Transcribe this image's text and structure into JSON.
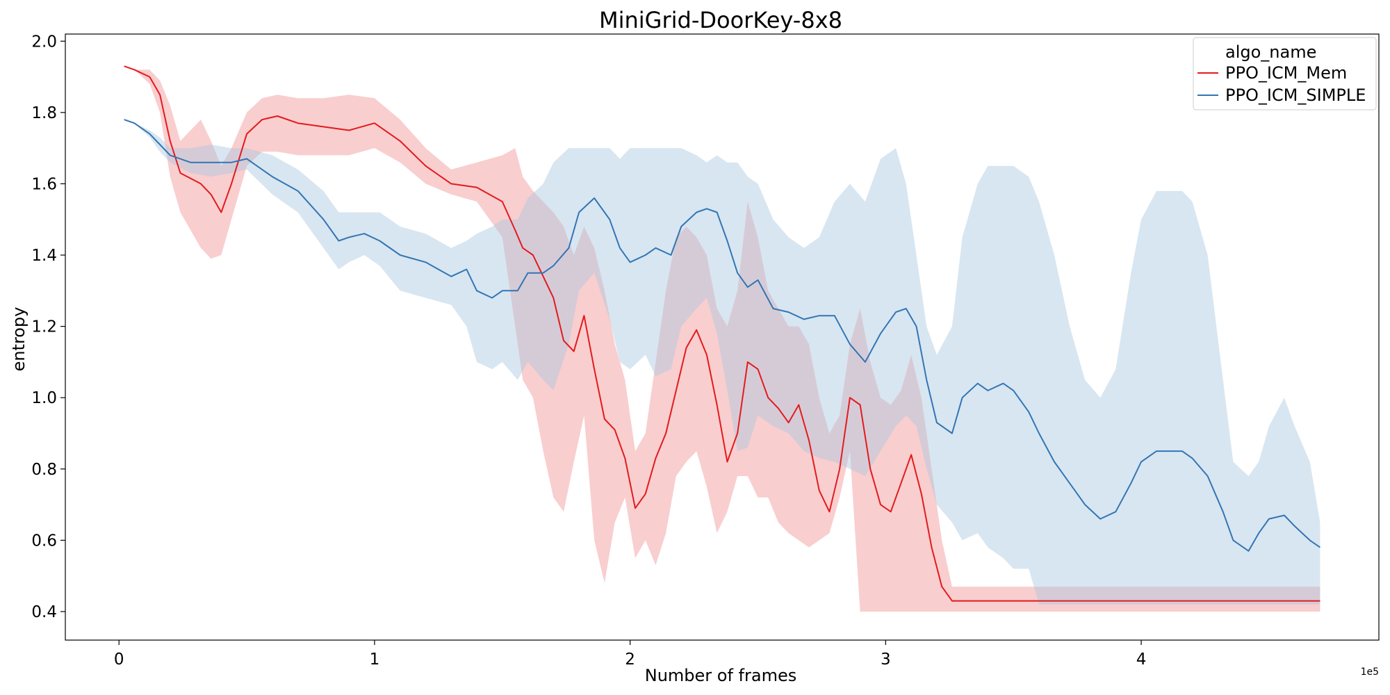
{
  "chart_data": {
    "type": "line",
    "title": "MiniGrid-DoorKey-8x8",
    "xlabel": "Number of frames",
    "ylabel": "entropy",
    "x_scale_label": "1e5",
    "xlim": [
      -0.21,
      4.93
    ],
    "ylim": [
      0.32,
      2.02
    ],
    "x_ticks": [
      0,
      1,
      2,
      3,
      4
    ],
    "x_tick_labels": [
      "0",
      "1",
      "2",
      "3",
      "4"
    ],
    "y_ticks": [
      0.4,
      0.6,
      0.8,
      1.0,
      1.2,
      1.4,
      1.6,
      1.8,
      2.0
    ],
    "y_tick_labels": [
      "0.4",
      "0.6",
      "0.8",
      "1.0",
      "1.2",
      "1.4",
      "1.6",
      "1.8",
      "2.0"
    ],
    "grid": false,
    "legend": {
      "title": "algo_name",
      "position": "top-right"
    },
    "series": [
      {
        "name": "PPO_ICM_Mem",
        "color": "#e31a1c",
        "band_color": "#f4a6a7",
        "x": [
          0.02,
          0.06,
          0.12,
          0.16,
          0.2,
          0.24,
          0.32,
          0.36,
          0.4,
          0.44,
          0.5,
          0.56,
          0.62,
          0.7,
          0.8,
          0.9,
          1.0,
          1.1,
          1.2,
          1.3,
          1.4,
          1.5,
          1.55,
          1.58,
          1.62,
          1.66,
          1.7,
          1.74,
          1.78,
          1.82,
          1.86,
          1.9,
          1.94,
          1.98,
          2.02,
          2.06,
          2.1,
          2.14,
          2.18,
          2.22,
          2.26,
          2.3,
          2.34,
          2.38,
          2.42,
          2.46,
          2.5,
          2.54,
          2.58,
          2.62,
          2.66,
          2.7,
          2.74,
          2.78,
          2.82,
          2.86,
          2.9,
          2.94,
          2.98,
          3.02,
          3.06,
          3.1,
          3.14,
          3.18,
          3.22,
          3.26,
          3.3,
          3.5,
          4.0,
          4.7
        ],
        "y": [
          1.93,
          1.92,
          1.9,
          1.85,
          1.72,
          1.63,
          1.6,
          1.57,
          1.52,
          1.6,
          1.74,
          1.78,
          1.79,
          1.77,
          1.76,
          1.75,
          1.77,
          1.72,
          1.65,
          1.6,
          1.59,
          1.55,
          1.47,
          1.42,
          1.4,
          1.34,
          1.28,
          1.16,
          1.13,
          1.23,
          1.08,
          0.94,
          0.91,
          0.83,
          0.69,
          0.73,
          0.83,
          0.9,
          1.02,
          1.14,
          1.19,
          1.12,
          0.98,
          0.82,
          0.9,
          1.1,
          1.08,
          1.0,
          0.97,
          0.93,
          0.98,
          0.88,
          0.74,
          0.68,
          0.8,
          1.0,
          0.98,
          0.8,
          0.7,
          0.68,
          0.76,
          0.84,
          0.73,
          0.58,
          0.47,
          0.43,
          0.43,
          0.43,
          0.43,
          0.43
        ],
        "lower": [
          1.93,
          1.92,
          1.88,
          1.8,
          1.62,
          1.52,
          1.42,
          1.39,
          1.4,
          1.5,
          1.65,
          1.69,
          1.69,
          1.68,
          1.68,
          1.68,
          1.7,
          1.66,
          1.6,
          1.57,
          1.55,
          1.45,
          1.2,
          1.05,
          1.0,
          0.85,
          0.72,
          0.68,
          0.82,
          0.95,
          0.6,
          0.48,
          0.65,
          0.72,
          0.55,
          0.6,
          0.53,
          0.62,
          0.78,
          0.82,
          0.85,
          0.75,
          0.62,
          0.68,
          0.78,
          0.78,
          0.72,
          0.72,
          0.65,
          0.62,
          0.6,
          0.58,
          0.6,
          0.62,
          0.72,
          0.85,
          0.4,
          0.4,
          0.4,
          0.4,
          0.4,
          0.4,
          0.4,
          0.4,
          0.4,
          0.4,
          0.4,
          0.4,
          0.4,
          0.4
        ],
        "upper": [
          1.93,
          1.92,
          1.92,
          1.89,
          1.82,
          1.72,
          1.78,
          1.72,
          1.65,
          1.7,
          1.8,
          1.84,
          1.85,
          1.84,
          1.84,
          1.85,
          1.84,
          1.78,
          1.7,
          1.64,
          1.66,
          1.68,
          1.7,
          1.62,
          1.58,
          1.55,
          1.52,
          1.48,
          1.4,
          1.48,
          1.42,
          1.3,
          1.15,
          1.05,
          0.85,
          0.9,
          1.1,
          1.3,
          1.45,
          1.48,
          1.45,
          1.4,
          1.25,
          1.2,
          1.3,
          1.55,
          1.45,
          1.3,
          1.25,
          1.2,
          1.2,
          1.15,
          1.0,
          0.9,
          0.95,
          1.15,
          1.25,
          1.1,
          1.0,
          0.98,
          1.02,
          1.12,
          1.0,
          0.8,
          0.6,
          0.47,
          0.47,
          0.47,
          0.47,
          0.47
        ]
      },
      {
        "name": "PPO_ICM_SIMPLE",
        "color": "#3275b4",
        "band_color": "#a9c7e1",
        "x": [
          0.02,
          0.06,
          0.12,
          0.16,
          0.2,
          0.28,
          0.36,
          0.44,
          0.5,
          0.6,
          0.7,
          0.8,
          0.86,
          0.9,
          0.96,
          1.02,
          1.1,
          1.2,
          1.3,
          1.36,
          1.4,
          1.46,
          1.5,
          1.56,
          1.6,
          1.66,
          1.7,
          1.76,
          1.8,
          1.86,
          1.92,
          1.96,
          2.0,
          2.06,
          2.1,
          2.16,
          2.2,
          2.26,
          2.3,
          2.34,
          2.38,
          2.42,
          2.46,
          2.5,
          2.56,
          2.62,
          2.68,
          2.74,
          2.8,
          2.86,
          2.92,
          2.98,
          3.04,
          3.08,
          3.12,
          3.16,
          3.2,
          3.26,
          3.3,
          3.36,
          3.4,
          3.46,
          3.5,
          3.56,
          3.6,
          3.66,
          3.72,
          3.78,
          3.84,
          3.9,
          3.96,
          4.0,
          4.06,
          4.12,
          4.16,
          4.2,
          4.26,
          4.32,
          4.36,
          4.42,
          4.46,
          4.5,
          4.56,
          4.6,
          4.66,
          4.7
        ],
        "y": [
          1.78,
          1.77,
          1.74,
          1.71,
          1.68,
          1.66,
          1.66,
          1.66,
          1.67,
          1.62,
          1.58,
          1.5,
          1.44,
          1.45,
          1.46,
          1.44,
          1.4,
          1.38,
          1.34,
          1.36,
          1.3,
          1.28,
          1.3,
          1.3,
          1.35,
          1.35,
          1.37,
          1.42,
          1.52,
          1.56,
          1.5,
          1.42,
          1.38,
          1.4,
          1.42,
          1.4,
          1.48,
          1.52,
          1.53,
          1.52,
          1.44,
          1.35,
          1.31,
          1.33,
          1.25,
          1.24,
          1.22,
          1.23,
          1.23,
          1.15,
          1.1,
          1.18,
          1.24,
          1.25,
          1.2,
          1.05,
          0.93,
          0.9,
          1.0,
          1.04,
          1.02,
          1.04,
          1.02,
          0.96,
          0.9,
          0.82,
          0.76,
          0.7,
          0.66,
          0.68,
          0.76,
          0.82,
          0.85,
          0.85,
          0.85,
          0.83,
          0.78,
          0.68,
          0.6,
          0.57,
          0.62,
          0.66,
          0.67,
          0.64,
          0.6,
          0.58
        ],
        "lower": [
          1.78,
          1.77,
          1.73,
          1.69,
          1.66,
          1.63,
          1.62,
          1.63,
          1.64,
          1.57,
          1.52,
          1.42,
          1.36,
          1.38,
          1.4,
          1.37,
          1.3,
          1.28,
          1.26,
          1.2,
          1.1,
          1.08,
          1.1,
          1.05,
          1.1,
          1.05,
          1.02,
          1.15,
          1.3,
          1.35,
          1.22,
          1.1,
          1.08,
          1.12,
          1.06,
          1.08,
          1.2,
          1.25,
          1.28,
          1.18,
          1.02,
          0.85,
          0.86,
          0.95,
          0.92,
          0.9,
          0.85,
          0.83,
          0.82,
          0.8,
          0.78,
          0.85,
          0.92,
          0.95,
          0.92,
          0.8,
          0.7,
          0.65,
          0.6,
          0.62,
          0.58,
          0.55,
          0.52,
          0.52,
          0.42,
          0.42,
          0.42,
          0.42,
          0.42,
          0.42,
          0.42,
          0.42,
          0.42,
          0.42,
          0.42,
          0.42,
          0.42,
          0.42,
          0.42,
          0.42,
          0.42,
          0.42,
          0.42,
          0.42,
          0.42,
          0.42
        ],
        "upper": [
          1.78,
          1.77,
          1.75,
          1.73,
          1.7,
          1.7,
          1.71,
          1.7,
          1.7,
          1.68,
          1.64,
          1.58,
          1.52,
          1.52,
          1.52,
          1.52,
          1.48,
          1.46,
          1.42,
          1.44,
          1.46,
          1.48,
          1.5,
          1.5,
          1.56,
          1.6,
          1.66,
          1.7,
          1.7,
          1.7,
          1.7,
          1.67,
          1.7,
          1.7,
          1.7,
          1.7,
          1.7,
          1.68,
          1.66,
          1.68,
          1.66,
          1.66,
          1.62,
          1.6,
          1.5,
          1.45,
          1.42,
          1.45,
          1.55,
          1.6,
          1.55,
          1.67,
          1.7,
          1.6,
          1.4,
          1.2,
          1.12,
          1.2,
          1.45,
          1.6,
          1.65,
          1.65,
          1.65,
          1.62,
          1.55,
          1.4,
          1.2,
          1.05,
          1.0,
          1.08,
          1.35,
          1.5,
          1.58,
          1.58,
          1.58,
          1.55,
          1.4,
          1.05,
          0.82,
          0.78,
          0.82,
          0.92,
          1.0,
          0.92,
          0.82,
          0.65
        ]
      }
    ]
  }
}
